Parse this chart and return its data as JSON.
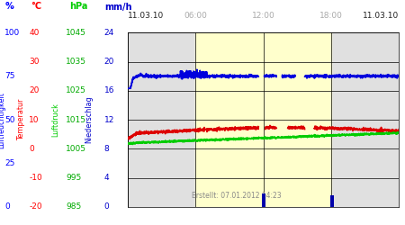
{
  "footer_text": "Erstellt: 07.01.2012 14:23",
  "night_color": "#e0e0e0",
  "day_color": "#ffffcc",
  "blue_line_color": "#0000dd",
  "green_line_color": "#00cc00",
  "red_line_color": "#dd0000",
  "navy_bar_color": "#0000aa",
  "grid_color": "#000000",
  "pct_vals": [
    100,
    75,
    50,
    25,
    0
  ],
  "temp_vals": [
    40,
    30,
    20,
    10,
    0,
    -10,
    -20
  ],
  "hpa_vals": [
    1045,
    1035,
    1025,
    1015,
    1005,
    995,
    985
  ],
  "mmh_vals": [
    24,
    20,
    16,
    12,
    8,
    4,
    0
  ],
  "unit_labels": [
    "%",
    "°C",
    "hPa",
    "mm/h"
  ],
  "unit_colors": [
    "#0000ff",
    "#ff0000",
    "#00cc00",
    "#0000cc"
  ],
  "rotated_labels": [
    "Luftfeuchtigkeit",
    "Temperatur",
    "Luftdruck",
    "Niederschlag"
  ],
  "rotated_colors": [
    "#0000ff",
    "#ff0000",
    "#00cc00",
    "#0000cc"
  ],
  "date_label": "11.03.10",
  "time_labels": [
    "06:00",
    "12:00",
    "18:00"
  ]
}
